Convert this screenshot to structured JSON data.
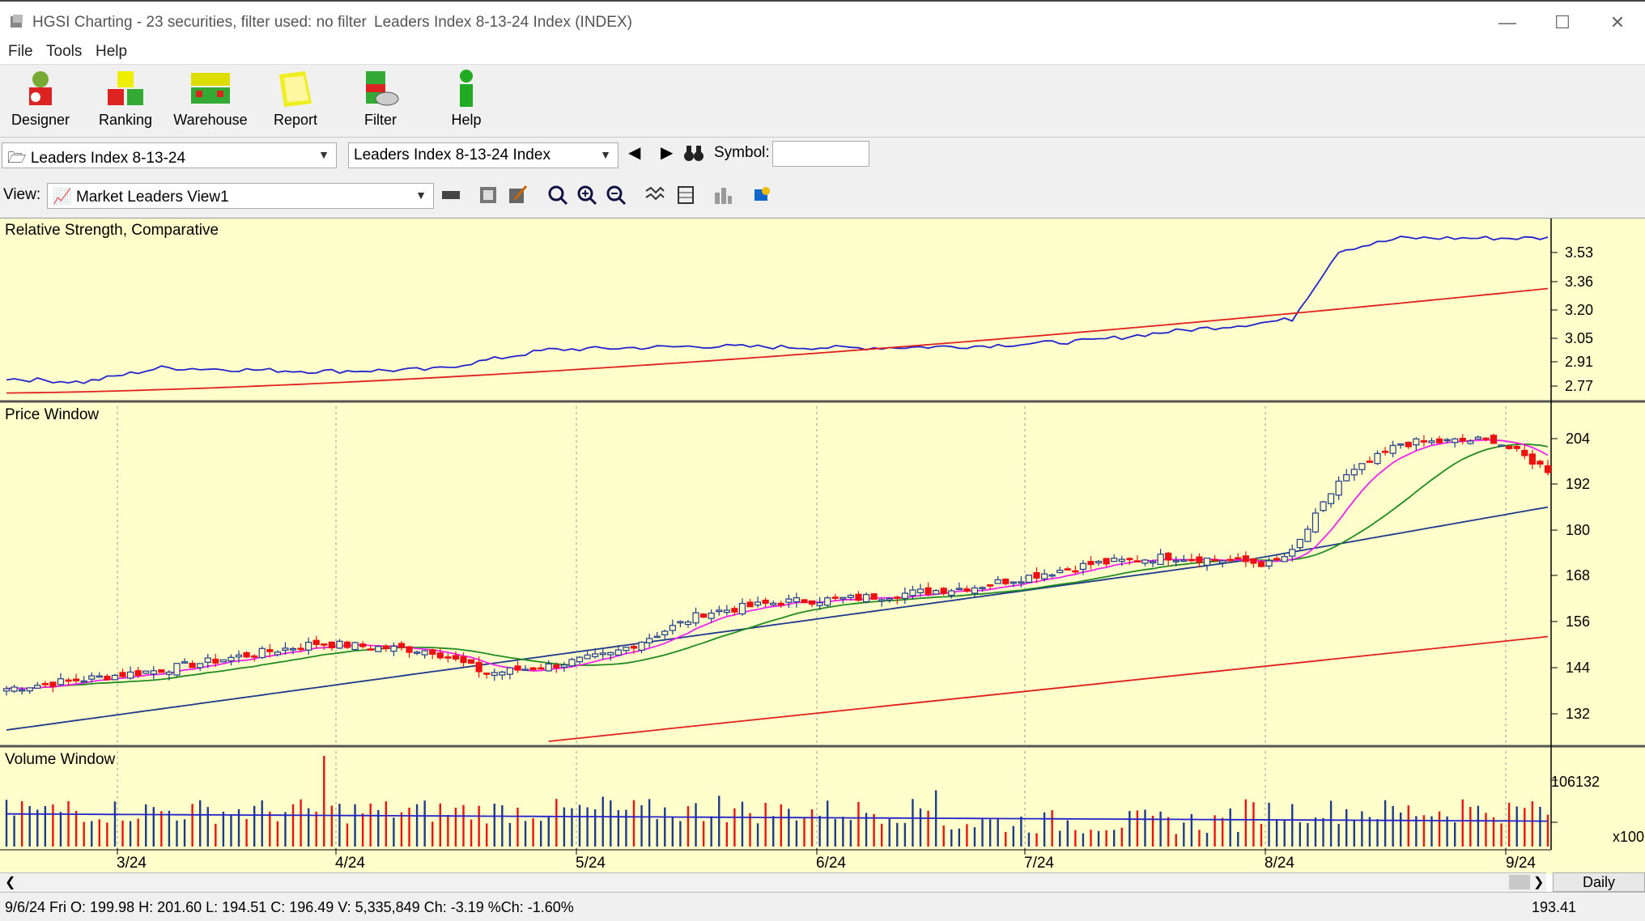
{
  "window": {
    "title": "HGSI Charting - 23 securities, filter used: no filter",
    "subtitle": "Leaders Index 8-13-24 Index (INDEX)",
    "minimize_icon": "minimize-icon",
    "maximize_icon": "maximize-icon",
    "close_icon": "close-icon"
  },
  "menu": {
    "file": "File",
    "tools": "Tools",
    "help": "Help"
  },
  "toolbar": [
    {
      "label": "Designer",
      "icon": "designer-icon"
    },
    {
      "label": "Ranking",
      "icon": "ranking-icon"
    },
    {
      "label": "Warehouse",
      "icon": "warehouse-icon"
    },
    {
      "label": "Report",
      "icon": "report-icon"
    },
    {
      "label": "Filter",
      "icon": "filter-icon"
    },
    {
      "label": "Help",
      "icon": "help-icon"
    }
  ],
  "selectors": {
    "list": "Leaders Index 8-13-24",
    "security": "Leaders Index 8-13-24 Index",
    "symbol_label": "Symbol:",
    "symbol_value": ""
  },
  "viewbar": {
    "label": "View:",
    "view": "Market Leaders View1"
  },
  "panes": {
    "rs": {
      "label": "Relative Strength, Comparative",
      "ticks": [
        "3.53",
        "3.36",
        "3.20",
        "3.05",
        "2.91",
        "2.77"
      ]
    },
    "price": {
      "label": "Price Window",
      "ticks": [
        "204",
        "192",
        "180",
        "168",
        "156",
        "144",
        "132"
      ]
    },
    "volume": {
      "label": "Volume Window",
      "ticks": [
        "106132"
      ],
      "multiplier": "x100"
    }
  },
  "dates": [
    "3/24",
    "4/24",
    "5/24",
    "6/24",
    "7/24",
    "8/24",
    "9/24"
  ],
  "status": {
    "quote": "9/6/24 Fri O: 199.98 H: 201.60 L: 194.51 C: 196.49 V: 5,335,849 Ch: -3.19 %Ch: -1.60%",
    "price": "193.41",
    "period": "Daily"
  },
  "colors": {
    "chart_bg": "#ffffcc",
    "up": "#1f3a8a",
    "down": "#ee1111",
    "ma_fast": "#ee22ee",
    "ma_mid": "#228b22",
    "ma_slow": "#1f3a8a",
    "ma_long": "#e02020"
  },
  "chart_data": {
    "type": "candlestick",
    "x": [
      "3/24",
      "4/24",
      "5/24",
      "6/24",
      "7/24",
      "8/24",
      "9/24"
    ],
    "rs_comparative": [
      2.77,
      2.85,
      2.92,
      2.98,
      3.02,
      3.0,
      3.05,
      3.1,
      3.2,
      3.55
    ],
    "price_close": [
      140,
      150,
      145,
      148,
      160,
      166,
      172,
      175,
      176,
      205,
      199
    ],
    "last_bar": {
      "date": "9/6/24",
      "open": 199.98,
      "high": 201.6,
      "low": 194.51,
      "close": 196.49,
      "volume": 5335849
    }
  }
}
